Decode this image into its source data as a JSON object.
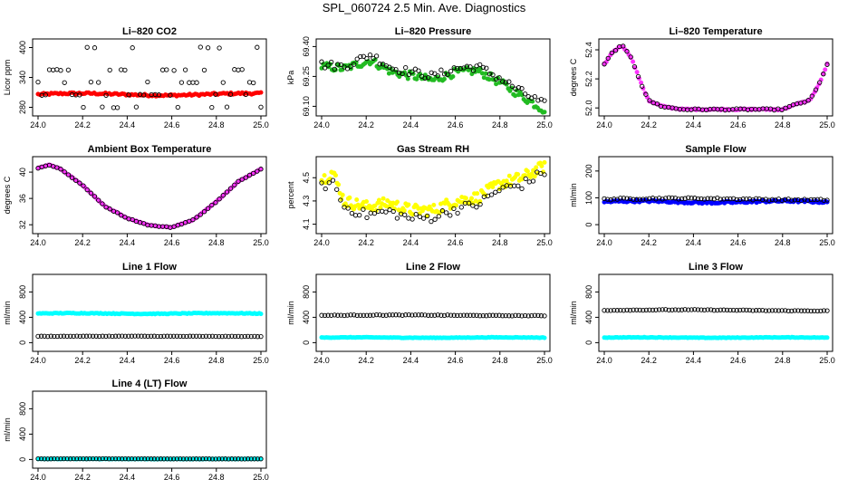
{
  "page_title": "SPL_060724  2.5 Min. Ave. Diagnostics",
  "chart_data": [
    {
      "type": "scatter",
      "title": "Li–820 CO2",
      "ylabel": "Licor ppm",
      "xlim": [
        24.0,
        25.0
      ],
      "ylim": [
        270,
        410
      ],
      "xticks": [
        "24.0",
        "24.2",
        "24.4",
        "24.6",
        "24.8",
        "25.0"
      ],
      "yticks": [
        {
          "v": 280,
          "label": "280"
        },
        {
          "v": 340,
          "label": "340"
        },
        {
          "v": 400,
          "label": "400"
        }
      ],
      "series": [
        {
          "name": "primary",
          "color": "#ff0000",
          "fill": true,
          "n": 120,
          "shape": "flat",
          "base": 306,
          "amp": 2,
          "noise": 2
        },
        {
          "name": "secondary",
          "color": "#000000",
          "fill": false,
          "n": 60,
          "shape": "levels",
          "levels": [
            280,
            305,
            330,
            355,
            400
          ],
          "noise": 1
        }
      ]
    },
    {
      "type": "scatter",
      "title": "Li–820 Pressure",
      "ylabel": "kPa",
      "xlim": [
        24.0,
        25.0
      ],
      "ylim": [
        69.07,
        69.42
      ],
      "xticks": [
        "24.0",
        "24.2",
        "24.4",
        "24.6",
        "24.8",
        "25.0"
      ],
      "yticks": [
        {
          "v": 69.1,
          "label": "69.10"
        },
        {
          "v": 69.25,
          "label": "69.25"
        },
        {
          "v": 69.4,
          "label": "69.40"
        }
      ],
      "series": [
        {
          "name": "primary",
          "color": "#22bb22",
          "fill": true,
          "n": 130,
          "shape": "pts",
          "pts": [
            [
              24.0,
              69.3
            ],
            [
              24.1,
              69.29
            ],
            [
              24.22,
              69.33
            ],
            [
              24.32,
              69.27
            ],
            [
              24.42,
              69.25
            ],
            [
              24.5,
              69.23
            ],
            [
              24.6,
              69.27
            ],
            [
              24.7,
              69.28
            ],
            [
              24.8,
              69.22
            ],
            [
              24.9,
              69.15
            ],
            [
              25.0,
              69.08
            ]
          ],
          "noise": 0.02
        },
        {
          "name": "secondary",
          "color": "#000000",
          "fill": false,
          "n": 70,
          "shape": "pts",
          "pts": [
            [
              24.0,
              69.31
            ],
            [
              24.1,
              69.3
            ],
            [
              24.22,
              69.36
            ],
            [
              24.32,
              69.29
            ],
            [
              24.42,
              69.27
            ],
            [
              24.5,
              69.25
            ],
            [
              24.6,
              69.29
            ],
            [
              24.7,
              69.3
            ],
            [
              24.8,
              69.24
            ],
            [
              24.9,
              69.17
            ],
            [
              25.0,
              69.11
            ]
          ],
          "noise": 0.02
        }
      ]
    },
    {
      "type": "scatter",
      "title": "Li–820 Temperature",
      "ylabel": "degrees C",
      "xlim": [
        24.0,
        25.0
      ],
      "ylim": [
        51.97,
        52.45
      ],
      "xticks": [
        "24.0",
        "24.2",
        "24.4",
        "24.6",
        "24.8",
        "25.0"
      ],
      "yticks": [
        {
          "v": 52.0,
          "label": "52.0"
        },
        {
          "v": 52.2,
          "label": "52.2"
        },
        {
          "v": 52.4,
          "label": "52.4"
        }
      ],
      "series": [
        {
          "name": "primary",
          "color": "#ff33ff",
          "fill": true,
          "n": 110,
          "shape": "pts",
          "pts": [
            [
              24.0,
              52.3
            ],
            [
              24.04,
              52.39
            ],
            [
              24.08,
              52.43
            ],
            [
              24.12,
              52.35
            ],
            [
              24.17,
              52.15
            ],
            [
              24.2,
              52.05
            ],
            [
              24.26,
              52.01
            ],
            [
              24.35,
              51.99
            ],
            [
              24.5,
              51.99
            ],
            [
              24.7,
              51.99
            ],
            [
              24.8,
              51.99
            ],
            [
              24.87,
              52.03
            ],
            [
              24.92,
              52.05
            ],
            [
              24.96,
              52.15
            ],
            [
              25.0,
              52.3
            ]
          ],
          "noise": 0.005
        },
        {
          "name": "secondary",
          "color": "#000000",
          "fill": false,
          "n": 60,
          "shape": "pts",
          "pts": [
            [
              24.0,
              52.3
            ],
            [
              24.04,
              52.39
            ],
            [
              24.08,
              52.43
            ],
            [
              24.12,
              52.35
            ],
            [
              24.17,
              52.15
            ],
            [
              24.2,
              52.05
            ],
            [
              24.26,
              52.01
            ],
            [
              24.35,
              51.99
            ],
            [
              24.5,
              51.99
            ],
            [
              24.7,
              51.99
            ],
            [
              24.8,
              51.99
            ],
            [
              24.87,
              52.03
            ],
            [
              24.92,
              52.05
            ],
            [
              24.96,
              52.15
            ],
            [
              25.0,
              52.3
            ]
          ],
          "noise": 0.005
        }
      ]
    },
    {
      "type": "scatter",
      "title": "Ambient Box Temperature",
      "ylabel": "degrees C",
      "xlim": [
        24.0,
        25.0
      ],
      "ylim": [
        31.2,
        41.8
      ],
      "xticks": [
        "24.0",
        "24.2",
        "24.4",
        "24.6",
        "24.8",
        "25.0"
      ],
      "yticks": [
        {
          "v": 32,
          "label": "32"
        },
        {
          "v": 36,
          "label": "36"
        },
        {
          "v": 40,
          "label": "40"
        }
      ],
      "series": [
        {
          "name": "primary",
          "color": "#ff33ff",
          "fill": true,
          "n": 110,
          "shape": "pts",
          "pts": [
            [
              24.0,
              40.6
            ],
            [
              24.05,
              41.1
            ],
            [
              24.1,
              40.5
            ],
            [
              24.2,
              38.0
            ],
            [
              24.3,
              34.8
            ],
            [
              24.4,
              33.0
            ],
            [
              24.5,
              31.9
            ],
            [
              24.6,
              31.6
            ],
            [
              24.7,
              32.8
            ],
            [
              24.8,
              35.5
            ],
            [
              24.9,
              38.6
            ],
            [
              25.0,
              40.5
            ]
          ],
          "noise": 0.05
        },
        {
          "name": "secondary",
          "color": "#000000",
          "fill": false,
          "n": 60,
          "shape": "pts",
          "pts": [
            [
              24.0,
              40.6
            ],
            [
              24.05,
              41.1
            ],
            [
              24.1,
              40.5
            ],
            [
              24.2,
              38.0
            ],
            [
              24.3,
              34.8
            ],
            [
              24.4,
              33.0
            ],
            [
              24.5,
              31.9
            ],
            [
              24.6,
              31.6
            ],
            [
              24.7,
              32.8
            ],
            [
              24.8,
              35.5
            ],
            [
              24.9,
              38.6
            ],
            [
              25.0,
              40.5
            ]
          ],
          "noise": 0.05
        }
      ]
    },
    {
      "type": "scatter",
      "title": "Gas Stream RH",
      "ylabel": "percent",
      "xlim": [
        24.0,
        25.0
      ],
      "ylim": [
        4.05,
        4.65
      ],
      "xticks": [
        "24.0",
        "24.2",
        "24.4",
        "24.6",
        "24.8",
        "25.0"
      ],
      "yticks": [
        {
          "v": 4.1,
          "label": "4.1"
        },
        {
          "v": 4.3,
          "label": "4.3"
        },
        {
          "v": 4.5,
          "label": "4.5"
        }
      ],
      "series": [
        {
          "name": "primary",
          "color": "#ffff00",
          "fill": true,
          "n": 160,
          "shape": "pts",
          "pts": [
            [
              24.0,
              4.48
            ],
            [
              24.05,
              4.55
            ],
            [
              24.1,
              4.3
            ],
            [
              24.2,
              4.25
            ],
            [
              24.3,
              4.28
            ],
            [
              24.4,
              4.22
            ],
            [
              24.5,
              4.22
            ],
            [
              24.6,
              4.3
            ],
            [
              24.7,
              4.33
            ],
            [
              24.8,
              4.45
            ],
            [
              24.9,
              4.5
            ],
            [
              25.0,
              4.6
            ]
          ],
          "noise": 0.05
        },
        {
          "name": "secondary",
          "color": "#000000",
          "fill": false,
          "n": 60,
          "shape": "pts",
          "pts": [
            [
              24.0,
              4.42
            ],
            [
              24.05,
              4.47
            ],
            [
              24.1,
              4.25
            ],
            [
              24.2,
              4.18
            ],
            [
              24.3,
              4.21
            ],
            [
              24.4,
              4.15
            ],
            [
              24.5,
              4.16
            ],
            [
              24.6,
              4.23
            ],
            [
              24.7,
              4.27
            ],
            [
              24.8,
              4.4
            ],
            [
              24.9,
              4.44
            ],
            [
              25.0,
              4.55
            ]
          ],
          "noise": 0.04
        }
      ]
    },
    {
      "type": "scatter",
      "title": "Sample Flow",
      "ylabel": "ml/min",
      "xlim": [
        24.0,
        25.0
      ],
      "ylim": [
        -20,
        240
      ],
      "xticks": [
        "24.0",
        "24.2",
        "24.4",
        "24.6",
        "24.8",
        "25.0"
      ],
      "yticks": [
        {
          "v": 0,
          "label": "0"
        },
        {
          "v": 100,
          "label": "100"
        },
        {
          "v": 200,
          "label": "200"
        }
      ],
      "series": [
        {
          "name": "primary",
          "color": "#0000ff",
          "fill": true,
          "n": 140,
          "shape": "flat",
          "base": 85,
          "amp": 3,
          "noise": 4
        },
        {
          "name": "secondary",
          "color": "#000000",
          "fill": false,
          "n": 70,
          "shape": "flat",
          "base": 95,
          "amp": 3,
          "noise": 3
        }
      ]
    },
    {
      "type": "scatter",
      "title": "Line 1 Flow",
      "ylabel": "ml/min",
      "xlim": [
        24.0,
        25.0
      ],
      "ylim": [
        -80,
        1020
      ],
      "xticks": [
        "24.0",
        "24.2",
        "24.4",
        "24.6",
        "24.8",
        "25.0"
      ],
      "yticks": [
        {
          "v": 0,
          "label": "0"
        },
        {
          "v": 400,
          "label": "400"
        },
        {
          "v": 800,
          "label": "800"
        }
      ],
      "series": [
        {
          "name": "primary",
          "color": "#00ffff",
          "fill": true,
          "n": 140,
          "shape": "flat",
          "base": 460,
          "amp": 5,
          "noise": 6
        },
        {
          "name": "secondary",
          "color": "#000000",
          "fill": false,
          "n": 70,
          "shape": "flat",
          "base": 100,
          "amp": 2,
          "noise": 3
        }
      ]
    },
    {
      "type": "scatter",
      "title": "Line 2 Flow",
      "ylabel": "ml/min",
      "xlim": [
        24.0,
        25.0
      ],
      "ylim": [
        -80,
        1020
      ],
      "xticks": [
        "24.0",
        "24.2",
        "24.4",
        "24.6",
        "24.8",
        "25.0"
      ],
      "yticks": [
        {
          "v": 0,
          "label": "0"
        },
        {
          "v": 400,
          "label": "400"
        },
        {
          "v": 800,
          "label": "800"
        }
      ],
      "series": [
        {
          "name": "primary",
          "color": "#00ffff",
          "fill": true,
          "n": 140,
          "shape": "flat",
          "base": 80,
          "amp": 3,
          "noise": 4
        },
        {
          "name": "secondary",
          "color": "#000000",
          "fill": false,
          "n": 70,
          "shape": "flat",
          "base": 430,
          "amp": 5,
          "noise": 5
        }
      ]
    },
    {
      "type": "scatter",
      "title": "Line 3 Flow",
      "ylabel": "ml/min",
      "xlim": [
        24.0,
        25.0
      ],
      "ylim": [
        -80,
        1020
      ],
      "xticks": [
        "24.0",
        "24.2",
        "24.4",
        "24.6",
        "24.8",
        "25.0"
      ],
      "yticks": [
        {
          "v": 0,
          "label": "0"
        },
        {
          "v": 400,
          "label": "400"
        },
        {
          "v": 800,
          "label": "800"
        }
      ],
      "series": [
        {
          "name": "primary",
          "color": "#00ffff",
          "fill": true,
          "n": 140,
          "shape": "flat",
          "base": 80,
          "amp": 3,
          "noise": 4
        },
        {
          "name": "secondary",
          "color": "#000000",
          "fill": false,
          "n": 70,
          "shape": "flat",
          "base": 510,
          "amp": 8,
          "noise": 5
        }
      ]
    },
    {
      "type": "scatter",
      "title": "Line 4 (LT) Flow",
      "ylabel": "ml/min",
      "xlim": [
        24.0,
        25.0
      ],
      "ylim": [
        -80,
        1020
      ],
      "xticks": [
        "24.0",
        "24.2",
        "24.4",
        "24.6",
        "24.8",
        "25.0"
      ],
      "yticks": [
        {
          "v": 0,
          "label": "0"
        },
        {
          "v": 400,
          "label": "400"
        },
        {
          "v": 800,
          "label": "800"
        }
      ],
      "series": [
        {
          "name": "primary",
          "color": "#00ffff",
          "fill": true,
          "n": 120,
          "shape": "flat",
          "base": 8,
          "amp": 1,
          "noise": 3
        },
        {
          "name": "secondary",
          "color": "#000000",
          "fill": false,
          "n": 70,
          "shape": "flat",
          "base": 10,
          "amp": 1,
          "noise": 2
        }
      ]
    }
  ]
}
